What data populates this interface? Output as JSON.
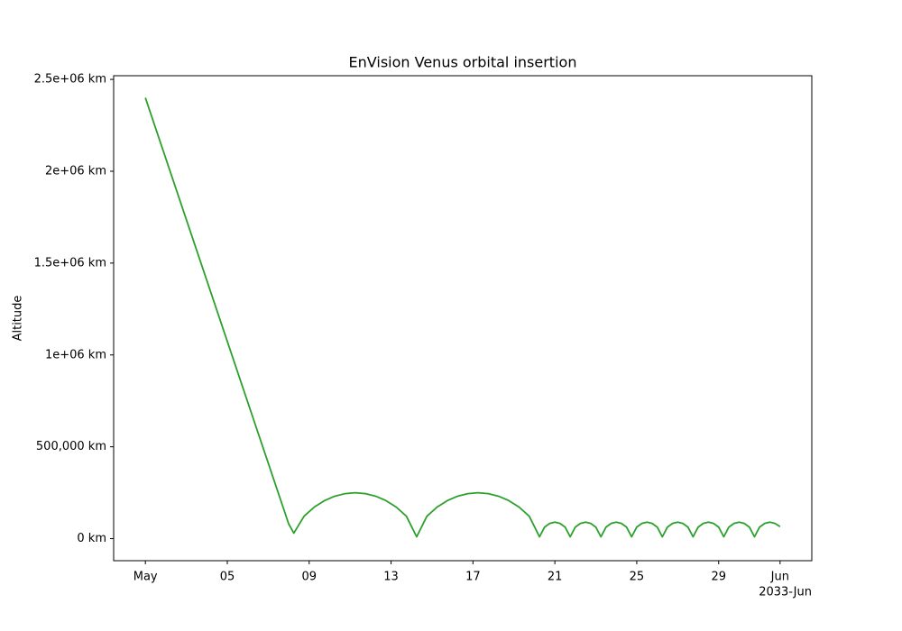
{
  "chart_data": {
    "type": "line",
    "title": "EnVision Venus orbital insertion",
    "ylabel": "Altitude",
    "x_offset_label": "2033-Jun",
    "color": "#2ca02c",
    "grid": false,
    "x": [
      "2033-05-01 00:00",
      "2033-05-08 00:00",
      "2033-05-08 06:00",
      "2033-05-08 18:00",
      "2033-05-09 06:00",
      "2033-05-09 18:00",
      "2033-05-10 06:00",
      "2033-05-10 18:00",
      "2033-05-11 06:00",
      "2033-05-11 18:00",
      "2033-05-12 06:00",
      "2033-05-12 18:00",
      "2033-05-13 06:00",
      "2033-05-13 18:00",
      "2033-05-14 06:00",
      "2033-05-14 18:00",
      "2033-05-15 06:00",
      "2033-05-15 18:00",
      "2033-05-16 06:00",
      "2033-05-16 18:00",
      "2033-05-17 06:00",
      "2033-05-17 18:00",
      "2033-05-18 06:00",
      "2033-05-18 18:00",
      "2033-05-19 06:00",
      "2033-05-19 18:00",
      "2033-05-20 06:00",
      "2033-05-20 12:00",
      "2033-05-20 18:00",
      "2033-05-21 00:00",
      "2033-05-21 06:00",
      "2033-05-21 12:00",
      "2033-05-21 18:00",
      "2033-05-22 00:00",
      "2033-05-22 06:00",
      "2033-05-22 12:00",
      "2033-05-22 18:00",
      "2033-05-23 00:00",
      "2033-05-23 06:00",
      "2033-05-23 12:00",
      "2033-05-23 18:00",
      "2033-05-24 00:00",
      "2033-05-24 06:00",
      "2033-05-24 12:00",
      "2033-05-24 18:00",
      "2033-05-25 00:00",
      "2033-05-25 06:00",
      "2033-05-25 12:00",
      "2033-05-25 18:00",
      "2033-05-26 00:00",
      "2033-05-26 06:00",
      "2033-05-26 12:00",
      "2033-05-26 18:00",
      "2033-05-27 00:00",
      "2033-05-27 06:00",
      "2033-05-27 12:00",
      "2033-05-27 18:00",
      "2033-05-28 00:00",
      "2033-05-28 06:00",
      "2033-05-28 12:00",
      "2033-05-28 18:00",
      "2033-05-29 00:00",
      "2033-05-29 06:00",
      "2033-05-29 12:00",
      "2033-05-29 18:00",
      "2033-05-30 00:00",
      "2033-05-30 06:00",
      "2033-05-30 12:00",
      "2033-05-30 18:00",
      "2033-05-31 00:00",
      "2033-05-31 06:00",
      "2033-05-31 12:00",
      "2033-05-31 18:00",
      "2033-06-01 00:00"
    ],
    "values": [
      2400000,
      80000,
      30000,
      122000,
      172000,
      207000,
      231000,
      245000,
      250000,
      245000,
      231000,
      207000,
      172000,
      122000,
      10000,
      122000,
      172000,
      207000,
      231000,
      245000,
      250000,
      245000,
      231000,
      207000,
      172000,
      122000,
      10000,
      63000,
      83000,
      90000,
      83000,
      63000,
      10000,
      63000,
      83000,
      90000,
      83000,
      63000,
      10000,
      63000,
      83000,
      90000,
      83000,
      63000,
      10000,
      63000,
      83000,
      90000,
      83000,
      63000,
      10000,
      63000,
      83000,
      90000,
      83000,
      63000,
      10000,
      63000,
      83000,
      90000,
      83000,
      63000,
      10000,
      63000,
      83000,
      90000,
      83000,
      63000,
      10000,
      63000,
      83000,
      90000,
      83000,
      65000
    ],
    "xlim": [
      "2033-04-29 10:48",
      "2033-06-02 13:12"
    ],
    "xticks": [
      {
        "value": "2033-05-01 00:00",
        "label": "May"
      },
      {
        "value": "2033-05-05 00:00",
        "label": "05"
      },
      {
        "value": "2033-05-09 00:00",
        "label": "09"
      },
      {
        "value": "2033-05-13 00:00",
        "label": "13"
      },
      {
        "value": "2033-05-17 00:00",
        "label": "17"
      },
      {
        "value": "2033-05-21 00:00",
        "label": "21"
      },
      {
        "value": "2033-05-25 00:00",
        "label": "25"
      },
      {
        "value": "2033-05-29 00:00",
        "label": "29"
      },
      {
        "value": "2033-06-01 00:00",
        "label": "Jun"
      }
    ],
    "ylim": [
      -120000,
      2520000
    ],
    "yticks": [
      {
        "value": 0,
        "label": "0 km"
      },
      {
        "value": 500000,
        "label": "500,000 km"
      },
      {
        "value": 1000000,
        "label": "1e+06 km"
      },
      {
        "value": 1500000,
        "label": "1.5e+06 km"
      },
      {
        "value": 2000000,
        "label": "2e+06 km"
      },
      {
        "value": 2500000,
        "label": "2.5e+06 km"
      }
    ]
  }
}
